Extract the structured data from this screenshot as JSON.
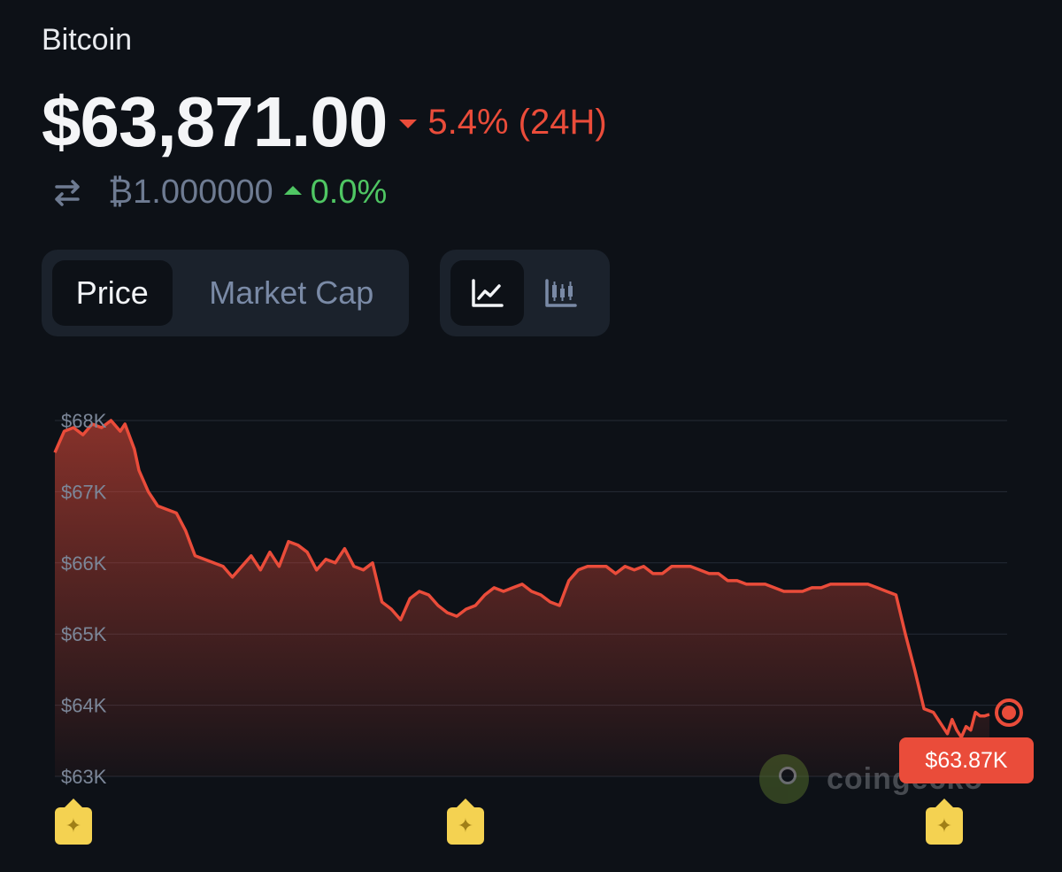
{
  "header": {
    "coin_name": "Bitcoin",
    "price": "$63,871.00",
    "change_24h": "5.4% (24H)",
    "change_24h_direction": "down",
    "btc_amount": "₿1.000000",
    "btc_change": "0.0%",
    "btc_change_direction": "up"
  },
  "tabs": {
    "metric": [
      {
        "label": "Price",
        "active": true
      },
      {
        "label": "Market Cap",
        "active": false
      }
    ],
    "chart_type": [
      {
        "icon": "line-chart-icon",
        "active": true
      },
      {
        "icon": "candlestick-chart-icon",
        "active": false
      }
    ]
  },
  "colors": {
    "negative": "#ea4c3a",
    "positive": "#4fc663",
    "background": "#0d1117"
  },
  "current_price_tag": "$63.87K",
  "watermark": "coingecko",
  "event_markers": [
    "star-badge-icon",
    "star-badge-icon",
    "star-badge-icon"
  ],
  "chart_data": {
    "type": "area",
    "title": "",
    "xlabel": "",
    "ylabel": "",
    "ylim": [
      63000,
      68000
    ],
    "yticks": [
      68000,
      67000,
      66000,
      65000,
      64000,
      63000
    ],
    "ytick_labels": [
      "$68K",
      "$67K",
      "$66K",
      "$65K",
      "$64K",
      "$63K"
    ],
    "grid": true,
    "legend": "none",
    "x": [
      0,
      0.01,
      0.02,
      0.03,
      0.04,
      0.05,
      0.06,
      0.07,
      0.075,
      0.085,
      0.09,
      0.1,
      0.11,
      0.12,
      0.13,
      0.14,
      0.15,
      0.16,
      0.17,
      0.18,
      0.19,
      0.2,
      0.21,
      0.22,
      0.23,
      0.24,
      0.25,
      0.26,
      0.27,
      0.28,
      0.29,
      0.3,
      0.31,
      0.32,
      0.33,
      0.34,
      0.35,
      0.36,
      0.37,
      0.38,
      0.39,
      0.4,
      0.41,
      0.42,
      0.43,
      0.44,
      0.45,
      0.46,
      0.47,
      0.48,
      0.49,
      0.5,
      0.51,
      0.52,
      0.53,
      0.54,
      0.55,
      0.56,
      0.57,
      0.58,
      0.59,
      0.6,
      0.61,
      0.62,
      0.63,
      0.64,
      0.65,
      0.66,
      0.67,
      0.68,
      0.69,
      0.7,
      0.71,
      0.72,
      0.73,
      0.74,
      0.75,
      0.76,
      0.77,
      0.78,
      0.79,
      0.8,
      0.81,
      0.82,
      0.83,
      0.84,
      0.85,
      0.86,
      0.87,
      0.88,
      0.89,
      0.9,
      0.91,
      0.92,
      0.93,
      0.94,
      0.95,
      0.955,
      0.96,
      0.965,
      0.97,
      0.975,
      0.98,
      0.985,
      0.99,
      0.995,
      1.0
    ],
    "y": [
      67550,
      67850,
      67900,
      67800,
      67950,
      67900,
      68000,
      67850,
      67950,
      67600,
      67300,
      67000,
      66800,
      66750,
      66700,
      66450,
      66100,
      66050,
      66000,
      65950,
      65800,
      65950,
      66100,
      65900,
      66150,
      65950,
      66300,
      66250,
      66150,
      65900,
      66050,
      66000,
      66200,
      65950,
      65900,
      66000,
      65450,
      65350,
      65200,
      65500,
      65600,
      65550,
      65400,
      65300,
      65250,
      65350,
      65400,
      65550,
      65650,
      65600,
      65650,
      65700,
      65600,
      65550,
      65450,
      65400,
      65750,
      65900,
      65950,
      65950,
      65950,
      65850,
      65950,
      65900,
      65950,
      65850,
      65850,
      65950,
      65950,
      65950,
      65900,
      65850,
      65850,
      65750,
      65750,
      65700,
      65700,
      65700,
      65650,
      65600,
      65600,
      65600,
      65650,
      65650,
      65700,
      65700,
      65700,
      65700,
      65700,
      65650,
      65600,
      65550,
      65000,
      64500,
      63950,
      63900,
      63700,
      63600,
      63800,
      63650,
      63550,
      63700,
      63650,
      63900,
      63850,
      63850,
      63871
    ]
  }
}
